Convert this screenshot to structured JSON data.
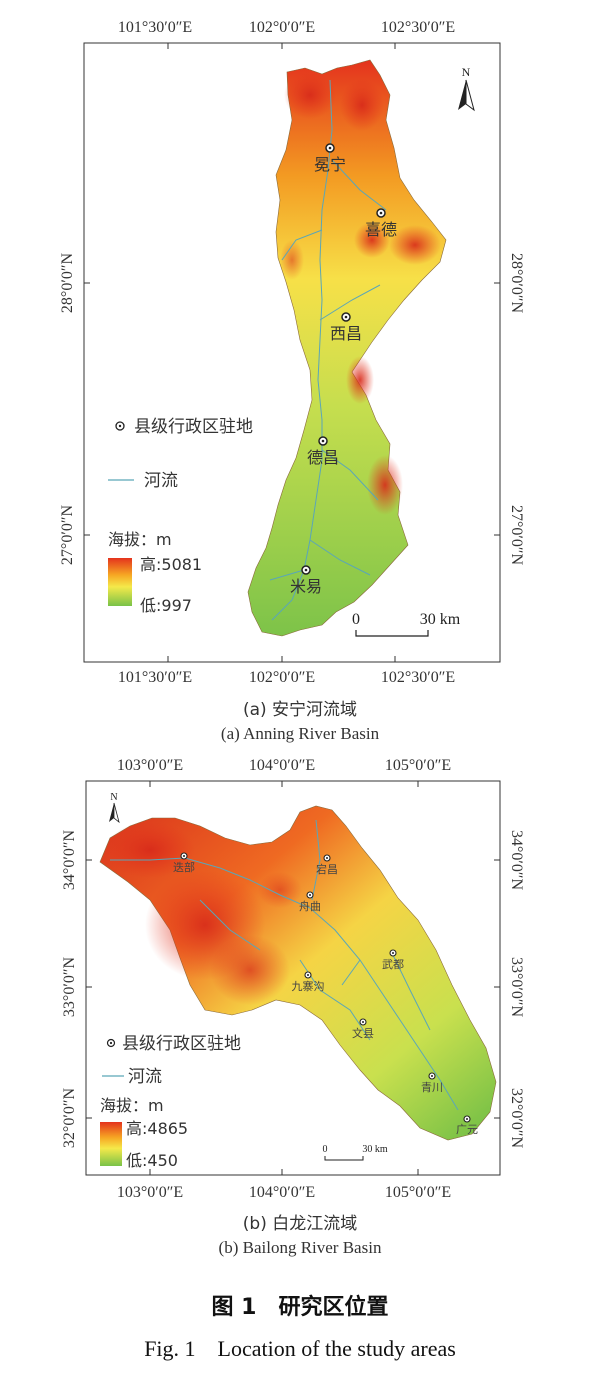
{
  "map_a": {
    "top_lon_labels": [
      "101°30′0″E",
      "102°0′0″E",
      "102°30′0″E"
    ],
    "bottom_lon_labels": [
      "101°30′0″E",
      "102°0′0″E",
      "102°30′0″E"
    ],
    "lat_labels": [
      "28°0′0″N",
      "27°0′0″N"
    ],
    "towns": [
      "冕宁",
      "喜德",
      "西昌",
      "德昌",
      "米易"
    ],
    "legend_seat": "县级行政区驻地",
    "legend_river": "河流",
    "legend_elev_title": "海拔：m",
    "legend_high": "高:5081",
    "legend_low": "低:997",
    "scale_zero": "0",
    "scale_end": "30 km",
    "north": "N",
    "caption_cn": "(a) 安宁河流域",
    "caption_en": "(a) Anning River Basin",
    "elev_colors": [
      "#e8321e",
      "#f6a623",
      "#f5e94a",
      "#bfe05a",
      "#7cc24a"
    ]
  },
  "map_b": {
    "top_lon_labels": [
      "103°0′0″E",
      "104°0′0″E",
      "105°0′0″E"
    ],
    "bottom_lon_labels": [
      "103°0′0″E",
      "104°0′0″E",
      "105°0′0″E"
    ],
    "lat_labels": [
      "34°0′0″N",
      "33°0′0″N",
      "32°0′0″N"
    ],
    "towns": [
      "迭部",
      "宕昌",
      "舟曲",
      "武都",
      "九寨沟",
      "文县",
      "青川",
      "广元"
    ],
    "legend_seat": "县级行政区驻地",
    "legend_river": "河流",
    "legend_elev_title": "海拔：m",
    "legend_high": "高:4865",
    "legend_low": "低:450",
    "scale_zero": "0",
    "scale_end": "30 km",
    "north": "N",
    "caption_cn": "(b) 白龙江流域",
    "caption_en": "(b) Bailong River Basin"
  },
  "figure": {
    "title_cn": "图 1　研究区位置",
    "title_en": "Fig. 1　Location of the study areas"
  }
}
